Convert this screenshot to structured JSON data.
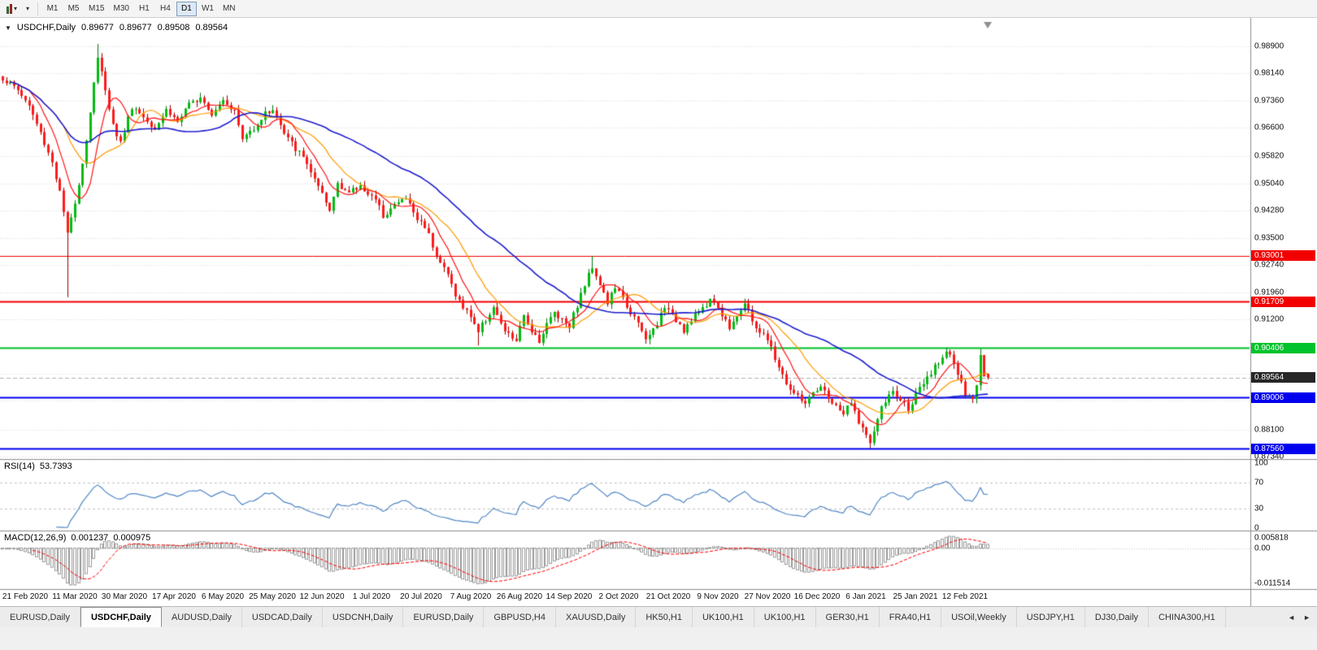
{
  "toolbar": {
    "left_icons": [
      {
        "name": "chart-type-icon",
        "glyph": "▾"
      },
      {
        "name": "chart-list-icon",
        "glyph": "▾"
      }
    ],
    "timeframes": [
      "M1",
      "M5",
      "M15",
      "M30",
      "H1",
      "H4",
      "D1",
      "W1",
      "MN"
    ],
    "active_timeframe": "D1"
  },
  "chart": {
    "collapse_glyph": "▼",
    "symbol_period": "USDCHF,Daily",
    "open": "0.89677",
    "high": "0.89677",
    "low": "0.89508",
    "close": "0.89564"
  },
  "price_axis": {
    "visible_ticks": [
      "0.98900",
      "0.98140",
      "0.97360",
      "0.96600",
      "0.95820",
      "0.95040",
      "0.94280",
      "0.93500",
      "0.92740",
      "0.91960",
      "0.91200",
      "0.88100",
      "0.87340"
    ],
    "hidden_grid_ticks": [
      "0.90440",
      "0.89680",
      "0.88920"
    ],
    "current_price": {
      "value": "0.89564",
      "bg": "#262626"
    }
  },
  "levels": [
    {
      "value": "0.93001",
      "color": "#f20000",
      "width": 1
    },
    {
      "value": "0.91709",
      "color": "#f20000",
      "width": 2
    },
    {
      "value": "0.90406",
      "color": "#00c32b",
      "width": 2
    },
    {
      "value": "0.89006",
      "color": "#0000ee",
      "width": 2
    },
    {
      "value": "0.87560",
      "color": "#0000ee",
      "width": 2
    }
  ],
  "rsi": {
    "label": "RSI(14)",
    "value": "53.7393",
    "axis_ticks": [
      "100",
      "70",
      "30",
      "0"
    ],
    "upper_level": 70,
    "lower_level": 30,
    "line_color": "#4f86c6"
  },
  "macd": {
    "label": "MACD(12,26,9)",
    "macd_value": "0.001237",
    "signal_value": "0.000975",
    "axis_top": "0.005818",
    "axis_zero": "0.00",
    "axis_bottom": "-0.011514",
    "histogram_color": "#9a9a9a",
    "signal_color": "#ff0000"
  },
  "date_axis": [
    "21 Feb 2020",
    "11 Mar 2020",
    "30 Mar 2020",
    "17 Apr 2020",
    "6 May 2020",
    "25 May 2020",
    "12 Jun 2020",
    "1 Jul 2020",
    "20 Jul 2020",
    "7 Aug 2020",
    "26 Aug 2020",
    "14 Sep 2020",
    "2 Oct 2020",
    "21 Oct 2020",
    "9 Nov 2020",
    "27 Nov 2020",
    "16 Dec 2020",
    "6 Jan 2021",
    "25 Jan 2021",
    "12 Feb 2021"
  ],
  "tabs": {
    "items": [
      {
        "label": "EURUSD,Daily",
        "active": false
      },
      {
        "label": "USDCHF,Daily",
        "active": true
      },
      {
        "label": "AUDUSD,Daily",
        "active": false
      },
      {
        "label": "USDCAD,Daily",
        "active": false
      },
      {
        "label": "USDCNH,Daily",
        "active": false
      },
      {
        "label": "EURUSD,Daily",
        "active": false
      },
      {
        "label": "GBPUSD,H4",
        "active": false
      },
      {
        "label": "XAUUSD,Daily",
        "active": false
      },
      {
        "label": "HK50,H1",
        "active": false
      },
      {
        "label": "UK100,H1",
        "active": false
      },
      {
        "label": "UK100,H1",
        "active": false
      },
      {
        "label": "GER30,H1",
        "active": false
      },
      {
        "label": "FRA40,H1",
        "active": false
      },
      {
        "label": "USOil,Weekly",
        "active": false
      },
      {
        "label": "USDJPY,H1",
        "active": false
      },
      {
        "label": "DJ30,Daily",
        "active": false
      },
      {
        "label": "CHINA300,H1",
        "active": false
      }
    ],
    "scroll_left_glyph": "◄",
    "scroll_right_glyph": "►"
  },
  "chart_data": {
    "type": "candlestick",
    "symbol": "USDCHF",
    "period": "Daily",
    "title": "USDCHF,Daily",
    "current_ohlc": {
      "open": 0.89677,
      "high": 0.89677,
      "low": 0.89508,
      "close": 0.89564
    },
    "y_axis_ticks": [
      0.989,
      0.9814,
      0.9736,
      0.966,
      0.9582,
      0.9504,
      0.9428,
      0.935,
      0.9274,
      0.9196,
      0.912,
      0.9044,
      0.8968,
      0.8892,
      0.881,
      0.8734
    ],
    "x_axis_dates": [
      "21 Feb 2020",
      "11 Mar 2020",
      "30 Mar 2020",
      "17 Apr 2020",
      "6 May 2020",
      "25 May 2020",
      "12 Jun 2020",
      "1 Jul 2020",
      "20 Jul 2020",
      "7 Aug 2020",
      "26 Aug 2020",
      "14 Sep 2020",
      "2 Oct 2020",
      "21 Oct 2020",
      "9 Nov 2020",
      "27 Nov 2020",
      "16 Dec 2020",
      "6 Jan 2021",
      "25 Jan 2021",
      "12 Feb 2021"
    ],
    "horizontal_levels": [
      0.93001,
      0.91709,
      0.90406,
      0.89006,
      0.8756
    ],
    "moving_averages": [
      {
        "period": 8,
        "color": "#ff1414"
      },
      {
        "period": 17,
        "color": "#ff9900"
      },
      {
        "period": 44,
        "color": "#1f1fd0"
      }
    ],
    "candle_count": 260,
    "price_path_anchors": [
      [
        0,
        0.98
      ],
      [
        4,
        0.9768
      ],
      [
        7,
        0.9722
      ],
      [
        10,
        0.9645
      ],
      [
        13,
        0.9565
      ],
      [
        15,
        0.9478
      ],
      [
        17,
        0.9365
      ],
      [
        18,
        0.9405
      ],
      [
        20,
        0.9505
      ],
      [
        22,
        0.9625
      ],
      [
        24,
        0.979
      ],
      [
        25,
        0.9858
      ],
      [
        27,
        0.9772
      ],
      [
        29,
        0.9668
      ],
      [
        31,
        0.9618
      ],
      [
        34,
        0.9722
      ],
      [
        37,
        0.9692
      ],
      [
        40,
        0.9662
      ],
      [
        43,
        0.9712
      ],
      [
        46,
        0.9678
      ],
      [
        49,
        0.9722
      ],
      [
        52,
        0.9752
      ],
      [
        55,
        0.9702
      ],
      [
        58,
        0.9744
      ],
      [
        61,
        0.9706
      ],
      [
        63,
        0.9628
      ],
      [
        66,
        0.9662
      ],
      [
        69,
        0.97
      ],
      [
        71,
        0.9714
      ],
      [
        74,
        0.9642
      ],
      [
        77,
        0.9602
      ],
      [
        80,
        0.9562
      ],
      [
        82,
        0.9512
      ],
      [
        84,
        0.9468
      ],
      [
        86,
        0.9425
      ],
      [
        88,
        0.9508
      ],
      [
        91,
        0.9476
      ],
      [
        94,
        0.9496
      ],
      [
        97,
        0.947
      ],
      [
        100,
        0.9416
      ],
      [
        103,
        0.9442
      ],
      [
        106,
        0.9464
      ],
      [
        109,
        0.9402
      ],
      [
        111,
        0.9386
      ],
      [
        113,
        0.9332
      ],
      [
        115,
        0.9282
      ],
      [
        117,
        0.9246
      ],
      [
        119,
        0.9192
      ],
      [
        121,
        0.9152
      ],
      [
        123,
        0.9132
      ],
      [
        125,
        0.9086
      ],
      [
        127,
        0.9122
      ],
      [
        129,
        0.9156
      ],
      [
        131,
        0.9102
      ],
      [
        133,
        0.9076
      ],
      [
        135,
        0.9062
      ],
      [
        137,
        0.9126
      ],
      [
        139,
        0.9092
      ],
      [
        141,
        0.9062
      ],
      [
        143,
        0.9106
      ],
      [
        145,
        0.9142
      ],
      [
        147,
        0.9122
      ],
      [
        149,
        0.9106
      ],
      [
        151,
        0.9162
      ],
      [
        153,
        0.9218
      ],
      [
        155,
        0.9272
      ],
      [
        157,
        0.9222
      ],
      [
        159,
        0.9166
      ],
      [
        161,
        0.9212
      ],
      [
        163,
        0.9176
      ],
      [
        165,
        0.9142
      ],
      [
        167,
        0.9106
      ],
      [
        169,
        0.9062
      ],
      [
        171,
        0.9092
      ],
      [
        173,
        0.9132
      ],
      [
        175,
        0.9156
      ],
      [
        177,
        0.9122
      ],
      [
        179,
        0.9092
      ],
      [
        181,
        0.9116
      ],
      [
        183,
        0.9142
      ],
      [
        185,
        0.9166
      ],
      [
        187,
        0.9176
      ],
      [
        189,
        0.9132
      ],
      [
        191,
        0.9102
      ],
      [
        193,
        0.9136
      ],
      [
        195,
        0.9162
      ],
      [
        197,
        0.9116
      ],
      [
        199,
        0.9086
      ],
      [
        201,
        0.9062
      ],
      [
        203,
        0.9012
      ],
      [
        205,
        0.8962
      ],
      [
        207,
        0.8922
      ],
      [
        209,
        0.8902
      ],
      [
        211,
        0.8886
      ],
      [
        213,
        0.8906
      ],
      [
        215,
        0.8926
      ],
      [
        217,
        0.8902
      ],
      [
        219,
        0.8872
      ],
      [
        221,
        0.8856
      ],
      [
        223,
        0.8882
      ],
      [
        225,
        0.8836
      ],
      [
        227,
        0.8792
      ],
      [
        228,
        0.8772
      ],
      [
        230,
        0.8842
      ],
      [
        232,
        0.8892
      ],
      [
        234,
        0.8916
      ],
      [
        236,
        0.8892
      ],
      [
        238,
        0.8872
      ],
      [
        240,
        0.8906
      ],
      [
        242,
        0.8936
      ],
      [
        244,
        0.8966
      ],
      [
        246,
        0.9002
      ],
      [
        248,
        0.903
      ],
      [
        249,
        0.9022
      ],
      [
        251,
        0.8966
      ],
      [
        253,
        0.8906
      ],
      [
        255,
        0.8892
      ],
      [
        256,
        0.8935
      ],
      [
        257,
        0.902
      ],
      [
        258,
        0.896
      ],
      [
        259,
        0.89564
      ]
    ],
    "close_overrides": [
      [
        17,
        0.9365
      ],
      [
        25,
        0.9858
      ],
      [
        228,
        0.8772
      ],
      [
        248,
        0.903
      ],
      [
        256,
        0.8935
      ],
      [
        257,
        0.902
      ],
      [
        258,
        0.896
      ],
      [
        259,
        0.89564
      ]
    ],
    "wick_overrides": [
      [
        17,
        "low",
        0.9183
      ],
      [
        25,
        "high",
        0.98965
      ],
      [
        125,
        "low",
        0.9047
      ],
      [
        155,
        "high",
        0.92995
      ],
      [
        187,
        "high",
        0.919
      ],
      [
        228,
        "low",
        0.8757
      ],
      [
        248,
        "high",
        0.9041
      ],
      [
        257,
        "high",
        0.9038
      ]
    ],
    "final_candle": {
      "open": 0.89677,
      "high": 0.89677,
      "low": 0.89508,
      "close": 0.89564
    },
    "indicators": {
      "rsi": {
        "period": 14,
        "last_value": 53.7393,
        "levels": [
          70,
          30
        ]
      },
      "macd": {
        "fast": 12,
        "slow": 26,
        "signal": 9,
        "last_macd": 0.001237,
        "last_signal": 0.000975,
        "axis_max": 0.005818,
        "axis_min": -0.011514
      }
    }
  }
}
